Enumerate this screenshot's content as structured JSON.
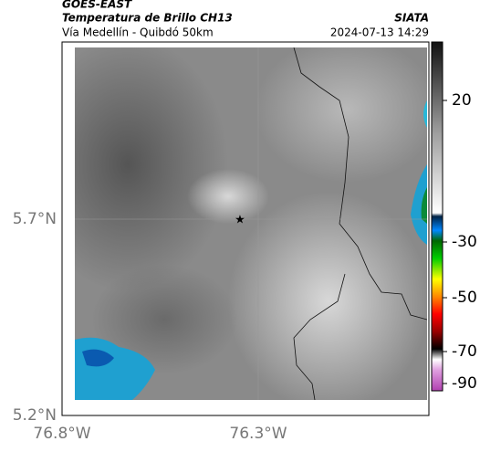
{
  "header": {
    "source": "GOES-EAST",
    "product": "Temperatura de Brillo CH13",
    "region": "Vía Medellín - Quibdó 50km",
    "agency": "SIATA",
    "timestamp": "2024-07-13 14:29"
  },
  "map": {
    "lat_labels": [
      "5.7°N",
      "5.2°N"
    ],
    "lon_labels": [
      "76.8°W",
      "76.3°W"
    ]
  },
  "colorbar": {
    "tick_labels": [
      "20",
      "-30",
      "-50",
      "-70",
      "-90"
    ]
  }
}
